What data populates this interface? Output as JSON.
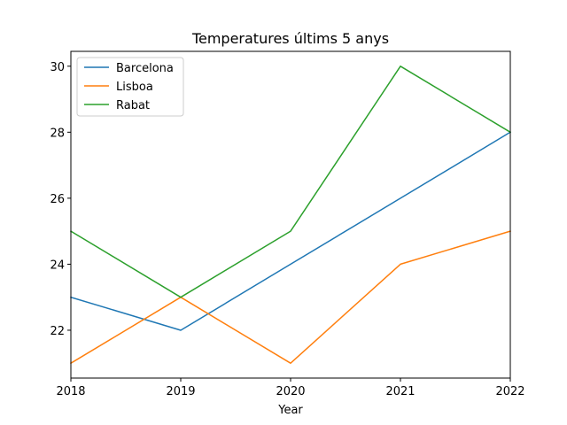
{
  "chart_data": {
    "type": "line",
    "title": "Temperatures últims 5 anys",
    "xlabel": "Year",
    "ylabel": "",
    "x": [
      2018,
      2019,
      2020,
      2021,
      2022
    ],
    "x_tick_labels": [
      "2018",
      "2019",
      "2020",
      "2021",
      "2022"
    ],
    "xlim": [
      2018,
      2022
    ],
    "ylim": [
      20.55,
      30.45
    ],
    "y_ticks": [
      22,
      24,
      26,
      28,
      30
    ],
    "y_tick_labels": [
      "22",
      "24",
      "26",
      "28",
      "30"
    ],
    "grid": false,
    "legend_position": "top-left",
    "series": [
      {
        "name": "Barcelona",
        "color": "#1f77b4",
        "values": [
          23,
          22,
          24,
          26,
          28
        ]
      },
      {
        "name": "Lisboa",
        "color": "#ff7f0e",
        "values": [
          21,
          23,
          21,
          24,
          25
        ]
      },
      {
        "name": "Rabat",
        "color": "#2ca02c",
        "values": [
          25,
          23,
          25,
          30,
          28
        ]
      }
    ]
  }
}
